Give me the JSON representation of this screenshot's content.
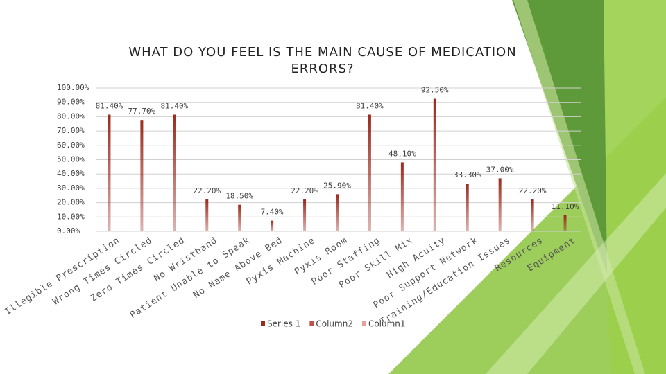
{
  "chart_data": {
    "type": "bar",
    "title": "WHAT DO YOU FEEL IS THE MAIN CAUSE OF MEDICATION ERRORS?",
    "categories": [
      "Illegible Prescription",
      "Wrong Times Circled",
      "Zero Times Circled",
      "No Wristband",
      "Patient Unable to Speak",
      "No Name Above Bed",
      "Pyxis Machine",
      "Pyxis Room",
      "Poor Staffing",
      "Poor Skill Mix",
      "High Acuity",
      "Poor Support Network",
      "Training/Education Issues",
      "Resources",
      "Equipment"
    ],
    "series": [
      {
        "name": "Series 1",
        "color": "#9b2a1e",
        "values": [
          81.4,
          77.7,
          81.4,
          22.2,
          18.5,
          7.4,
          22.2,
          25.9,
          81.4,
          48.1,
          92.5,
          33.3,
          37.0,
          22.2,
          11.1
        ],
        "value_labels": [
          "81.40%",
          "77.70%",
          "81.40%",
          "22.20%",
          "18.50%",
          "7.40%",
          "22.20%",
          "25.90%",
          "81.40%",
          "48.10%",
          "92.50%",
          "33.30%",
          "37.00%",
          "22.20%",
          "11.10%"
        ]
      },
      {
        "name": "Column2",
        "color": "#c0504d"
      },
      {
        "name": "Column1",
        "color": "#e8a09c"
      }
    ],
    "ylim": [
      0,
      100
    ],
    "yticks": [
      {
        "value": 0,
        "label": "0.00%"
      },
      {
        "value": 10,
        "label": "10.00%"
      },
      {
        "value": 20,
        "label": "20.00%"
      },
      {
        "value": 30,
        "label": "30.00%"
      },
      {
        "value": 40,
        "label": "40.00%"
      },
      {
        "value": 50,
        "label": "50.00%"
      },
      {
        "value": 60,
        "label": "60.00%"
      },
      {
        "value": 70,
        "label": "70.00%"
      },
      {
        "value": 80,
        "label": "80.00%"
      },
      {
        "value": 90,
        "label": "90.00%"
      },
      {
        "value": 100,
        "label": "100.00%"
      }
    ],
    "grid": true,
    "legend": "bottom"
  }
}
